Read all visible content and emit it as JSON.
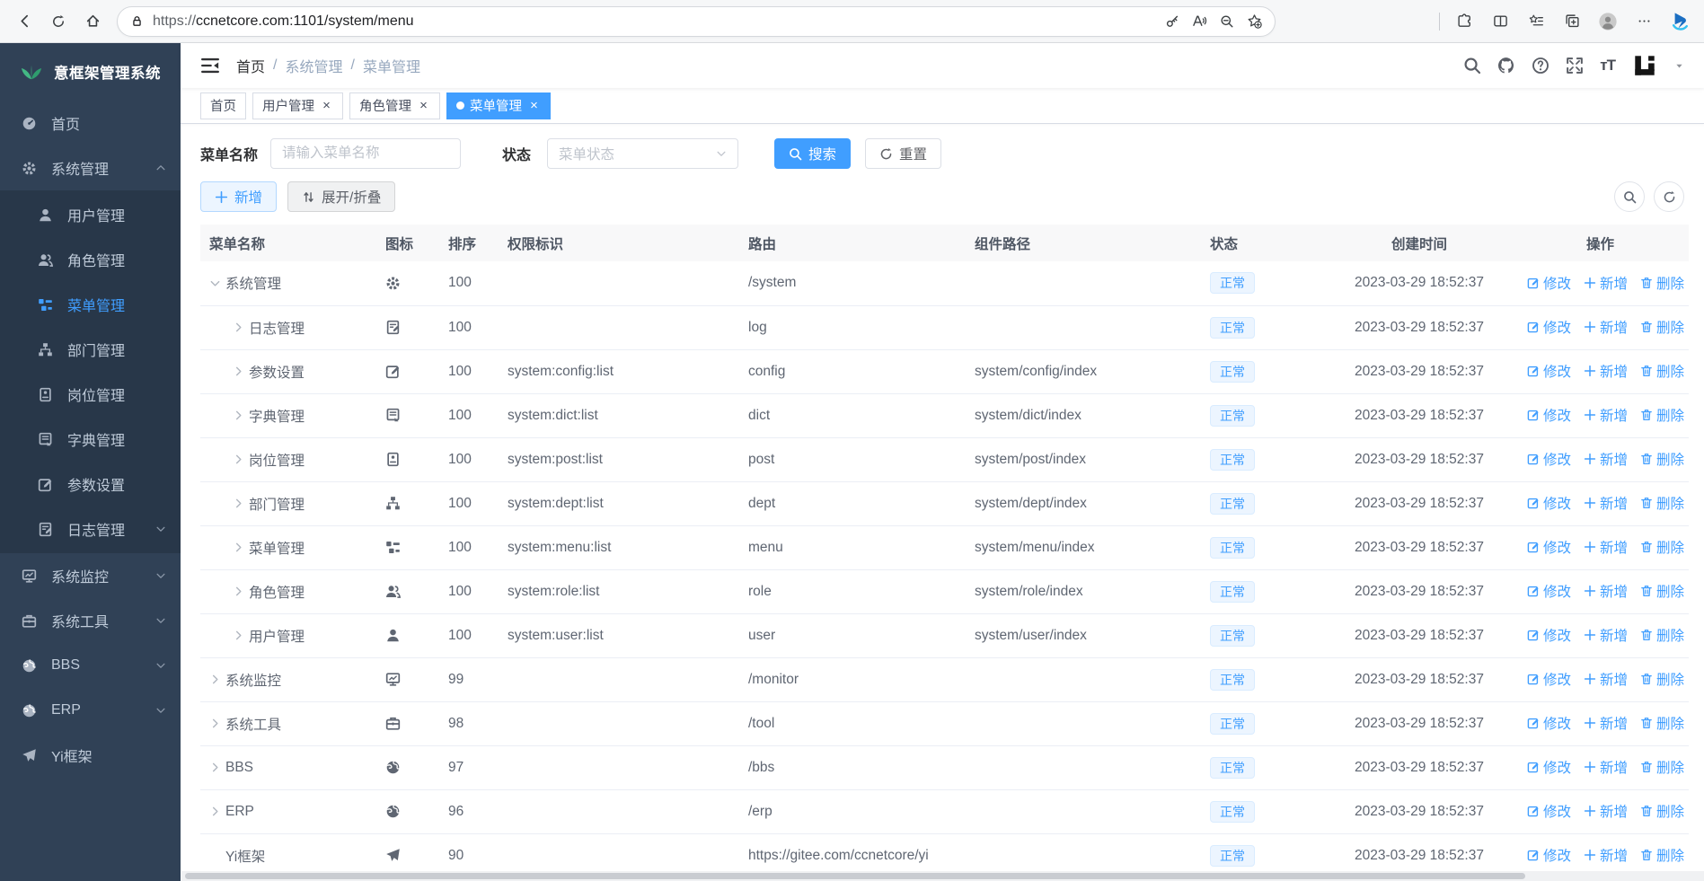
{
  "browser": {
    "url_scheme": "https://",
    "url_host": "ccnetcore.com",
    "url_path": ":1101/system/menu"
  },
  "app": {
    "logo": "意框架管理系统"
  },
  "breadcrumb": [
    "首页",
    "系统管理",
    "菜单管理"
  ],
  "tabs": [
    {
      "label": "首页",
      "closable": false,
      "active": false
    },
    {
      "label": "用户管理",
      "closable": true,
      "active": false
    },
    {
      "label": "角色管理",
      "closable": true,
      "active": false
    },
    {
      "label": "菜单管理",
      "closable": true,
      "active": true
    }
  ],
  "sidebar": {
    "items": [
      {
        "label": "首页",
        "icon": "dashboard",
        "level": 0
      },
      {
        "label": "系统管理",
        "icon": "gear",
        "level": 0,
        "arrow": "up"
      },
      {
        "label": "用户管理",
        "icon": "user",
        "level": 1
      },
      {
        "label": "角色管理",
        "icon": "users",
        "level": 1
      },
      {
        "label": "菜单管理",
        "icon": "menu",
        "level": 1,
        "active": true
      },
      {
        "label": "部门管理",
        "icon": "tree",
        "level": 1
      },
      {
        "label": "岗位管理",
        "icon": "post",
        "level": 1
      },
      {
        "label": "字典管理",
        "icon": "dict",
        "level": 1
      },
      {
        "label": "参数设置",
        "icon": "edit",
        "level": 1
      },
      {
        "label": "日志管理",
        "icon": "log",
        "level": 1,
        "arrow": "down"
      },
      {
        "label": "系统监控",
        "icon": "monitor",
        "level": 0,
        "arrow": "down"
      },
      {
        "label": "系统工具",
        "icon": "tool",
        "level": 0,
        "arrow": "down"
      },
      {
        "label": "BBS",
        "icon": "globe",
        "level": 0,
        "arrow": "down"
      },
      {
        "label": "ERP",
        "icon": "globe",
        "level": 0,
        "arrow": "down"
      },
      {
        "label": "Yi框架",
        "icon": "send",
        "level": 0
      }
    ]
  },
  "filters": {
    "name_label": "菜单名称",
    "name_placeholder": "请输入菜单名称",
    "status_label": "状态",
    "status_placeholder": "菜单状态",
    "search_label": "搜索",
    "reset_label": "重置"
  },
  "toolbar": {
    "add_label": "新增",
    "toggle_label": "展开/折叠"
  },
  "table": {
    "columns": [
      "菜单名称",
      "图标",
      "排序",
      "权限标识",
      "路由",
      "组件路径",
      "状态",
      "创建时间",
      "操作"
    ],
    "action_labels": [
      "修改",
      "新增",
      "删除"
    ],
    "rows": [
      {
        "name": "系统管理",
        "icon": "gear",
        "level": 0,
        "expand": "open",
        "order": "100",
        "perm": "",
        "route": "/system",
        "component": "",
        "status": "正常",
        "created": "2023-03-29 18:52:37"
      },
      {
        "name": "日志管理",
        "icon": "log",
        "level": 1,
        "expand": "closed",
        "order": "100",
        "perm": "",
        "route": "log",
        "component": "",
        "status": "正常",
        "created": "2023-03-29 18:52:37"
      },
      {
        "name": "参数设置",
        "icon": "edit",
        "level": 1,
        "expand": "closed",
        "order": "100",
        "perm": "system:config:list",
        "route": "config",
        "component": "system/config/index",
        "status": "正常",
        "created": "2023-03-29 18:52:37"
      },
      {
        "name": "字典管理",
        "icon": "dict",
        "level": 1,
        "expand": "closed",
        "order": "100",
        "perm": "system:dict:list",
        "route": "dict",
        "component": "system/dict/index",
        "status": "正常",
        "created": "2023-03-29 18:52:37"
      },
      {
        "name": "岗位管理",
        "icon": "post",
        "level": 1,
        "expand": "closed",
        "order": "100",
        "perm": "system:post:list",
        "route": "post",
        "component": "system/post/index",
        "status": "正常",
        "created": "2023-03-29 18:52:37"
      },
      {
        "name": "部门管理",
        "icon": "tree",
        "level": 1,
        "expand": "closed",
        "order": "100",
        "perm": "system:dept:list",
        "route": "dept",
        "component": "system/dept/index",
        "status": "正常",
        "created": "2023-03-29 18:52:37"
      },
      {
        "name": "菜单管理",
        "icon": "menu",
        "level": 1,
        "expand": "closed",
        "order": "100",
        "perm": "system:menu:list",
        "route": "menu",
        "component": "system/menu/index",
        "status": "正常",
        "created": "2023-03-29 18:52:37"
      },
      {
        "name": "角色管理",
        "icon": "users",
        "level": 1,
        "expand": "closed",
        "order": "100",
        "perm": "system:role:list",
        "route": "role",
        "component": "system/role/index",
        "status": "正常",
        "created": "2023-03-29 18:52:37"
      },
      {
        "name": "用户管理",
        "icon": "user",
        "level": 1,
        "expand": "closed",
        "order": "100",
        "perm": "system:user:list",
        "route": "user",
        "component": "system/user/index",
        "status": "正常",
        "created": "2023-03-29 18:52:37"
      },
      {
        "name": "系统监控",
        "icon": "monitor",
        "level": 0,
        "expand": "closed",
        "order": "99",
        "perm": "",
        "route": "/monitor",
        "component": "",
        "status": "正常",
        "created": "2023-03-29 18:52:37"
      },
      {
        "name": "系统工具",
        "icon": "tool",
        "level": 0,
        "expand": "closed",
        "order": "98",
        "perm": "",
        "route": "/tool",
        "component": "",
        "status": "正常",
        "created": "2023-03-29 18:52:37"
      },
      {
        "name": "BBS",
        "icon": "globe",
        "level": 0,
        "expand": "closed",
        "order": "97",
        "perm": "",
        "route": "/bbs",
        "component": "",
        "status": "正常",
        "created": "2023-03-29 18:52:37"
      },
      {
        "name": "ERP",
        "icon": "globe",
        "level": 0,
        "expand": "closed",
        "order": "96",
        "perm": "",
        "route": "/erp",
        "component": "",
        "status": "正常",
        "created": "2023-03-29 18:52:37"
      },
      {
        "name": "Yi框架",
        "icon": "send",
        "level": 0,
        "expand": "none",
        "order": "90",
        "perm": "",
        "route": "https://gitee.com/ccnetcore/yi",
        "component": "",
        "status": "正常",
        "created": "2023-03-29 18:52:37"
      }
    ]
  },
  "colors": {
    "accent": "#409eff",
    "status_bg": "#ecf5ff",
    "sidebar_bg": "#304156"
  }
}
